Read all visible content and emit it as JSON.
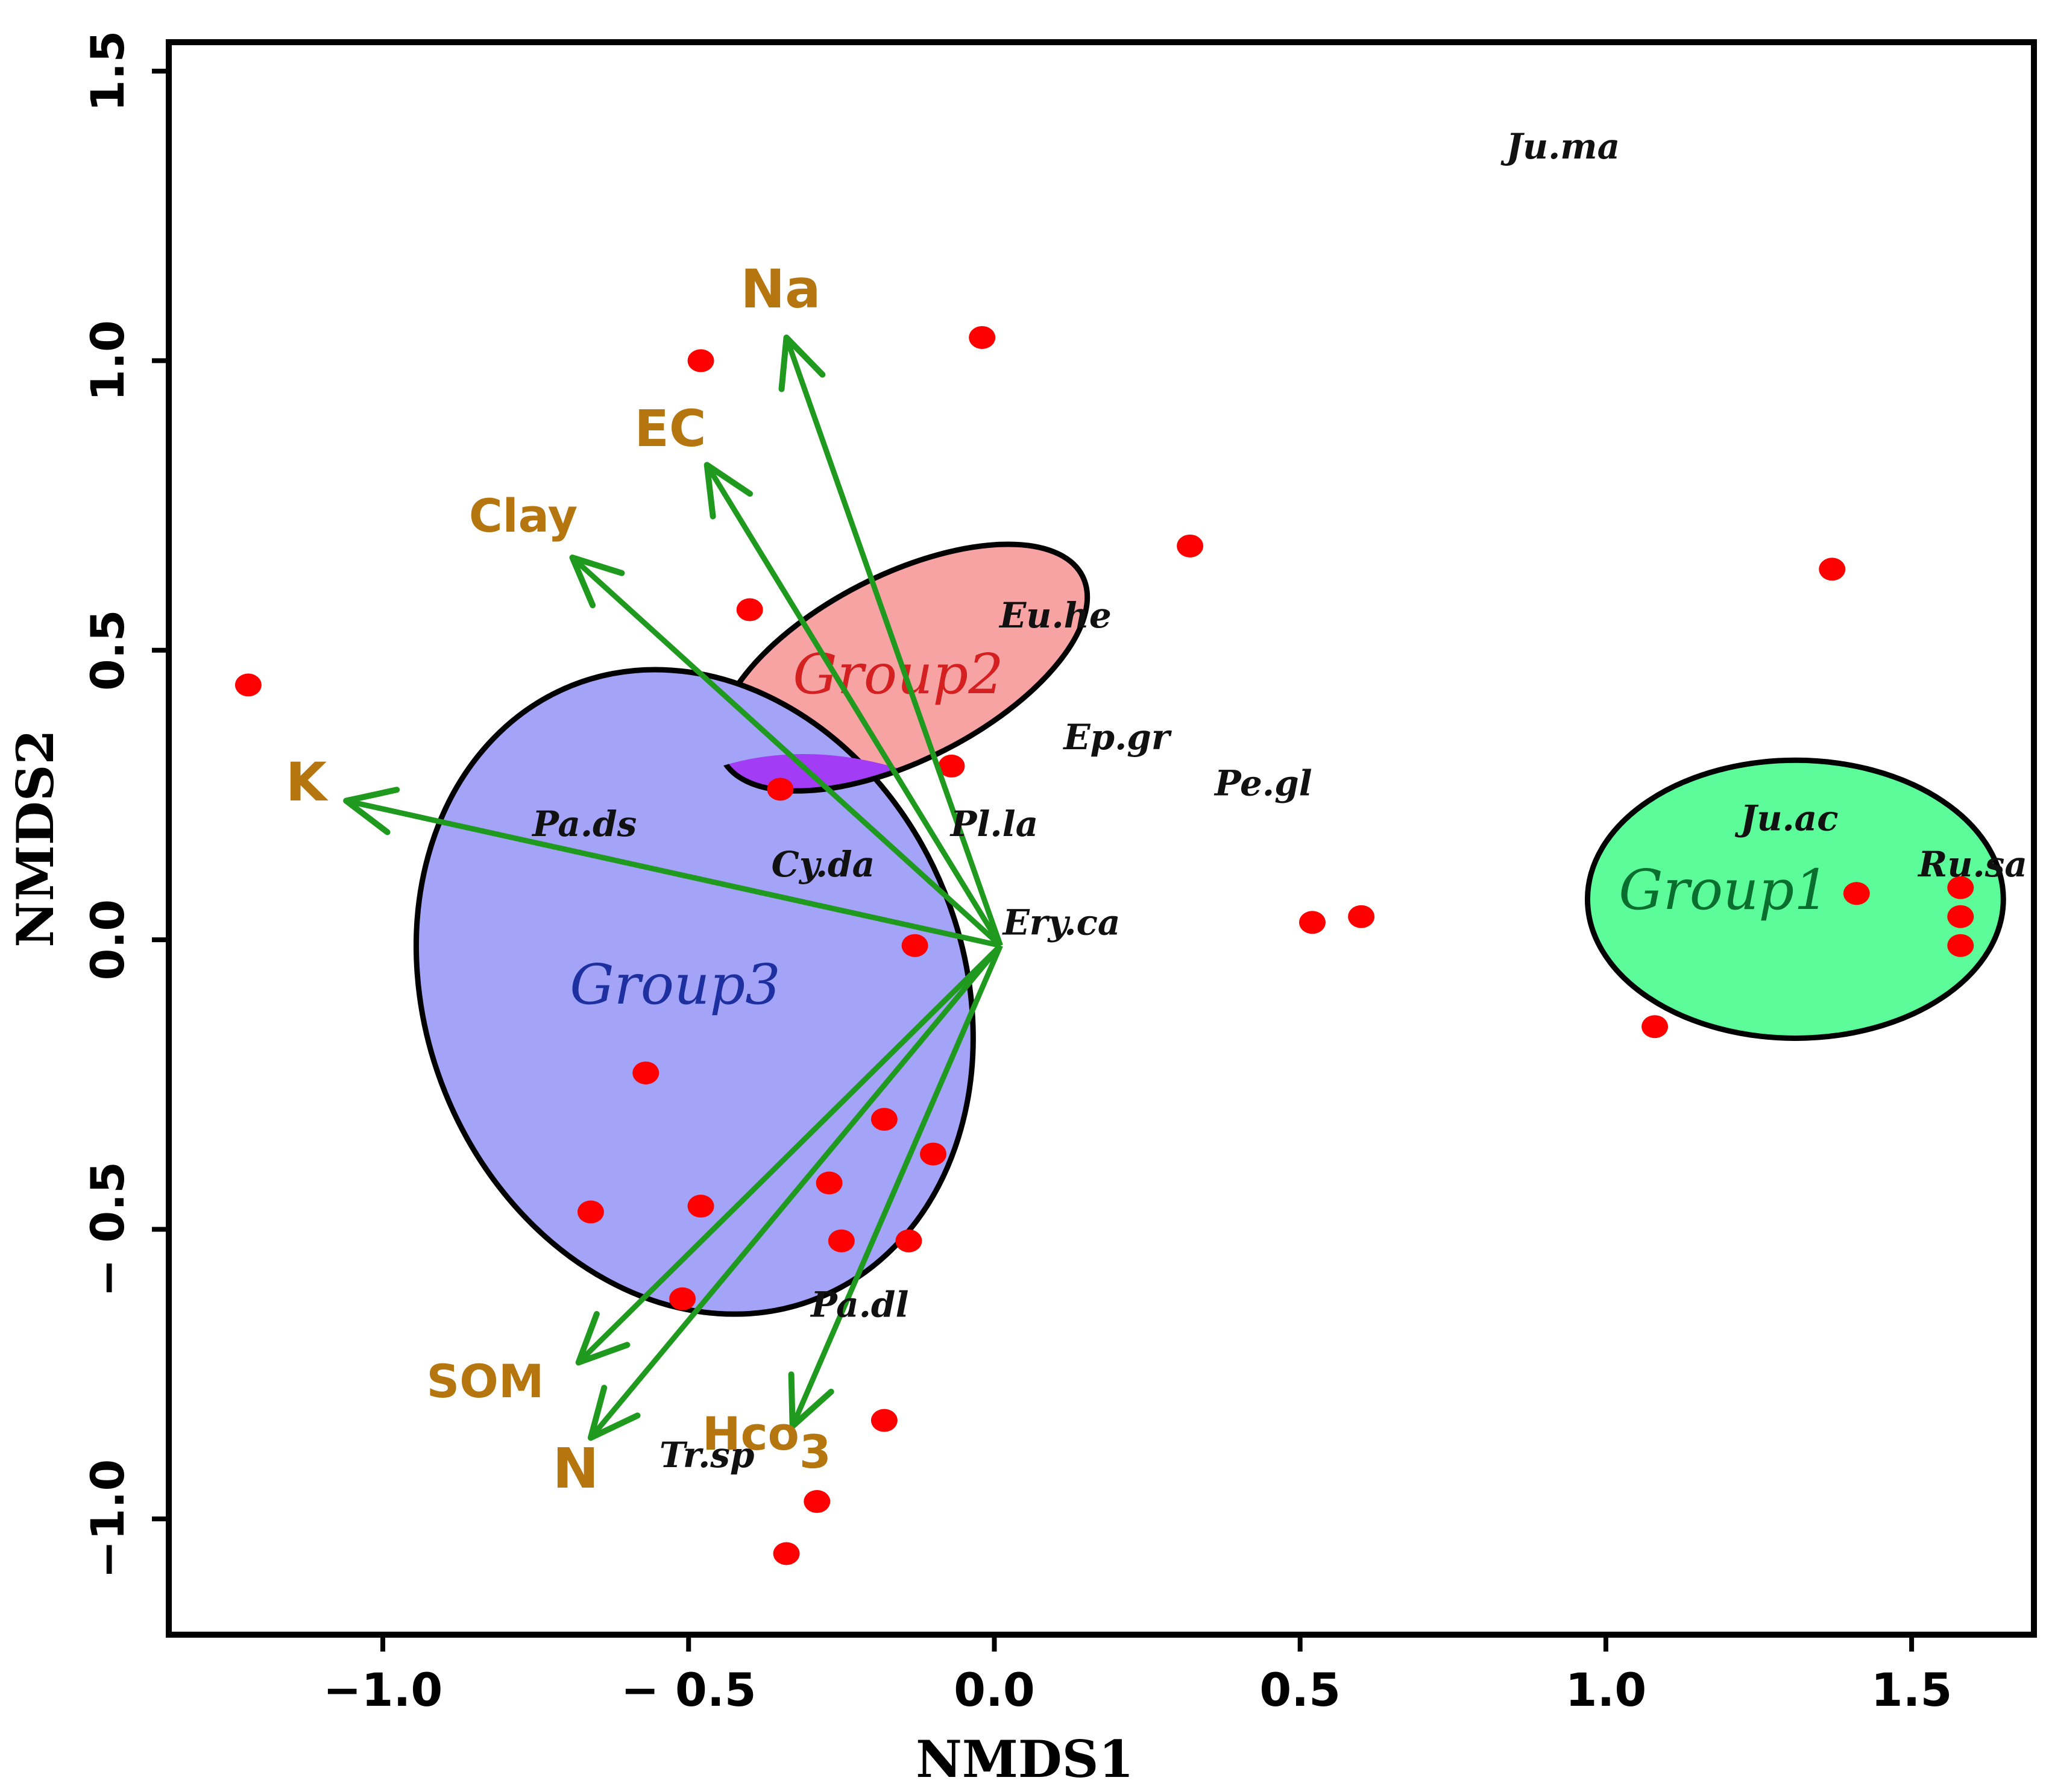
{
  "chart_data": {
    "type": "scatter",
    "xlabel": "NMDS1",
    "ylabel": "NMDS2",
    "xlim": [
      -1.35,
      1.7
    ],
    "ylim": [
      -1.2,
      1.55
    ],
    "x_ticks": [
      -1.0,
      -0.5,
      0.0,
      0.5,
      1.0,
      1.5
    ],
    "x_tick_labels": [
      "−1.0",
      "− 0.5",
      "0.0",
      "0.5",
      "1.0",
      "1.5"
    ],
    "y_ticks": [
      -1.0,
      -0.5,
      0.0,
      0.5,
      1.0,
      1.5
    ],
    "y_tick_labels": [
      "−1.0",
      "− 0.5",
      "0.0",
      "0.5",
      "1.0",
      "1.5"
    ],
    "grid": false,
    "colors": {
      "points": "#ff0000",
      "arrows": "#1f9a1f",
      "env_labels": "#b5760f",
      "group1_fill": "#5cfc9a",
      "group2_fill": "#f7a3a3",
      "group3_fill": "#a3a3f7",
      "overlap_fill": "#a33cf5"
    },
    "sites": [
      {
        "x": -1.22,
        "y": 0.44
      },
      {
        "x": -0.48,
        "y": 1.0
      },
      {
        "x": -0.02,
        "y": 1.04
      },
      {
        "x": -0.4,
        "y": 0.57
      },
      {
        "x": 0.32,
        "y": 0.68
      },
      {
        "x": -0.35,
        "y": 0.26
      },
      {
        "x": -0.07,
        "y": 0.3
      },
      {
        "x": -0.13,
        "y": -0.01
      },
      {
        "x": 0.52,
        "y": 0.03
      },
      {
        "x": 0.6,
        "y": 0.04
      },
      {
        "x": 1.37,
        "y": 0.64
      },
      {
        "x": 1.41,
        "y": 0.08
      },
      {
        "x": 1.58,
        "y": 0.09
      },
      {
        "x": 1.58,
        "y": 0.04
      },
      {
        "x": 1.58,
        "y": -0.01
      },
      {
        "x": 1.08,
        "y": -0.15
      },
      {
        "x": -0.57,
        "y": -0.23
      },
      {
        "x": -0.18,
        "y": -0.31
      },
      {
        "x": -0.1,
        "y": -0.37
      },
      {
        "x": -0.27,
        "y": -0.42
      },
      {
        "x": -0.66,
        "y": -0.47
      },
      {
        "x": -0.48,
        "y": -0.46
      },
      {
        "x": -0.25,
        "y": -0.52
      },
      {
        "x": -0.14,
        "y": -0.52
      },
      {
        "x": -0.51,
        "y": -0.62
      },
      {
        "x": -0.18,
        "y": -0.83
      },
      {
        "x": -0.29,
        "y": -0.97
      },
      {
        "x": -0.34,
        "y": -1.06
      }
    ],
    "env_vectors": [
      {
        "label": "Na",
        "x": -0.34,
        "y": 1.04
      },
      {
        "label": "EC",
        "x": -0.47,
        "y": 0.82
      },
      {
        "label": "Clay",
        "x": -0.69,
        "y": 0.66
      },
      {
        "label": "K",
        "x": -1.06,
        "y": 0.24
      },
      {
        "label": "SOM",
        "x": -0.68,
        "y": -0.73
      },
      {
        "label": "N",
        "x": -0.66,
        "y": -0.86
      },
      {
        "label": "Hco",
        "x": -0.33,
        "y": -0.84
      }
    ],
    "env_sub": {
      "Hco": "3"
    },
    "species": [
      {
        "label": "Ju.ma",
        "x": 0.93,
        "y": 1.37
      },
      {
        "label": "Eu.he",
        "x": 0.1,
        "y": 0.56
      },
      {
        "label": "Ep.gr",
        "x": 0.2,
        "y": 0.35
      },
      {
        "label": "Pe.gl",
        "x": 0.44,
        "y": 0.27
      },
      {
        "label": "Pl.la",
        "x": 0.0,
        "y": 0.2
      },
      {
        "label": "Pa.ds",
        "x": -0.67,
        "y": 0.2
      },
      {
        "label": "Cy.da",
        "x": -0.28,
        "y": 0.13
      },
      {
        "label": "Ery.ca",
        "x": 0.11,
        "y": 0.03
      },
      {
        "label": "Ju.ac",
        "x": 1.3,
        "y": 0.21
      },
      {
        "label": "Ru.sa",
        "x": 1.6,
        "y": 0.13
      },
      {
        "label": "Pa.dl",
        "x": -0.22,
        "y": -0.63
      },
      {
        "label": "Tr.sp",
        "x": -0.47,
        "y": -0.89
      }
    ],
    "groups": [
      {
        "label": "Group1",
        "cx": 1.31,
        "cy": 0.07,
        "rx": 0.34,
        "ry": 0.24,
        "angle": 0
      },
      {
        "label": "Group2",
        "cx": -0.15,
        "cy": 0.47,
        "rx": 0.33,
        "ry": 0.16,
        "angle": -27
      },
      {
        "label": "Group3",
        "cx": -0.49,
        "cy": -0.09,
        "rx": 0.44,
        "ry": 0.57,
        "angle": -22
      }
    ]
  }
}
